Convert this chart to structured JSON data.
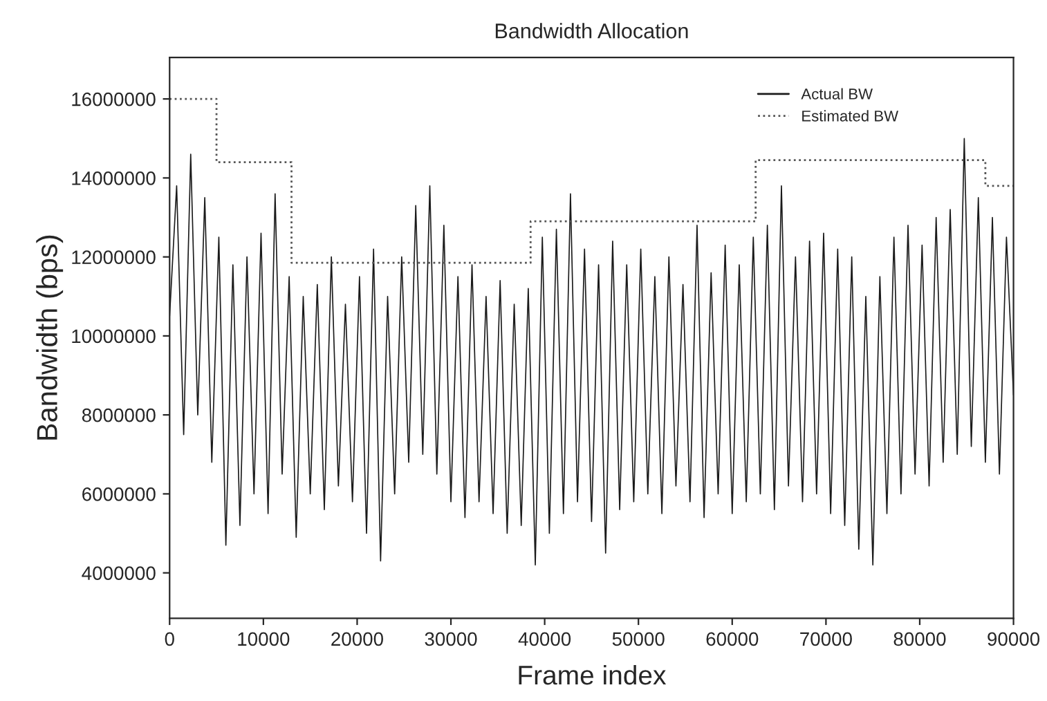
{
  "chart_data": {
    "type": "line",
    "title": "Bandwidth Allocation",
    "xlabel": "Frame index",
    "ylabel": "Bandwidth (bps)",
    "xlim": [
      0,
      90000
    ],
    "xticks": [
      0,
      10000,
      20000,
      30000,
      40000,
      50000,
      60000,
      70000,
      80000,
      90000
    ],
    "ylim": [
      2850000,
      17050000
    ],
    "yticks": [
      4000000,
      6000000,
      8000000,
      10000000,
      12000000,
      14000000,
      16000000
    ],
    "grid": false,
    "legend": "top right",
    "marker": "none",
    "series": [
      {
        "name": "Actual BW",
        "line_style": "solid",
        "color": "#1a1a1a",
        "x": [
          0,
          750,
          1500,
          2250,
          3000,
          3750,
          4500,
          5250,
          6000,
          6750,
          7500,
          8250,
          9000,
          9750,
          10500,
          11250,
          12000,
          12750,
          13500,
          14250,
          15000,
          15750,
          16500,
          17250,
          18000,
          18750,
          19500,
          20250,
          21000,
          21750,
          22500,
          23250,
          24000,
          24750,
          25500,
          26250,
          27000,
          27750,
          28500,
          29250,
          30000,
          30750,
          31500,
          32250,
          33000,
          33750,
          34500,
          35250,
          36000,
          36750,
          37500,
          38250,
          39000,
          39750,
          40500,
          41250,
          42000,
          42750,
          43500,
          44250,
          45000,
          45750,
          46500,
          47250,
          48000,
          48750,
          49500,
          50250,
          51000,
          51750,
          52500,
          53250,
          54000,
          54750,
          55500,
          56250,
          57000,
          57750,
          58500,
          59250,
          60000,
          60750,
          61500,
          62250,
          63000,
          63750,
          64500,
          65250,
          66000,
          66750,
          67500,
          68250,
          69000,
          69750,
          70500,
          71250,
          72000,
          72750,
          73500,
          74250,
          75000,
          75750,
          76500,
          77250,
          78000,
          78750,
          79500,
          80250,
          81000,
          81750,
          82500,
          83250,
          84000,
          84750,
          85500,
          86250,
          87000,
          87750,
          88500,
          89250,
          90000
        ],
        "values": [
          10500000,
          13800000,
          7500000,
          14600000,
          8000000,
          13500000,
          6800000,
          12500000,
          4700000,
          11800000,
          5200000,
          12000000,
          6000000,
          12600000,
          5500000,
          13600000,
          6500000,
          11500000,
          4900000,
          11000000,
          6000000,
          11300000,
          5600000,
          12000000,
          6200000,
          10800000,
          5800000,
          11500000,
          5000000,
          12200000,
          4300000,
          11000000,
          6000000,
          12000000,
          6800000,
          13300000,
          7000000,
          13800000,
          6500000,
          12800000,
          5800000,
          11500000,
          5400000,
          11800000,
          5800000,
          11000000,
          5500000,
          11400000,
          5000000,
          10800000,
          5200000,
          11200000,
          4200000,
          12500000,
          5000000,
          12700000,
          5500000,
          13600000,
          5800000,
          12200000,
          5300000,
          11800000,
          4500000,
          12400000,
          5600000,
          11800000,
          5800000,
          12200000,
          6000000,
          11500000,
          5500000,
          12000000,
          6200000,
          11300000,
          5800000,
          12800000,
          5400000,
          11600000,
          6000000,
          12300000,
          5500000,
          11800000,
          5800000,
          12500000,
          6000000,
          12800000,
          5600000,
          13800000,
          6200000,
          12000000,
          5800000,
          12400000,
          6000000,
          12600000,
          5500000,
          12200000,
          5200000,
          12000000,
          4600000,
          11000000,
          4200000,
          11500000,
          5500000,
          12500000,
          6000000,
          12800000,
          6500000,
          12300000,
          6200000,
          13000000,
          6800000,
          13200000,
          7000000,
          15000000,
          7200000,
          13500000,
          6800000,
          13000000,
          6500000,
          12500000,
          8500000
        ]
      },
      {
        "name": "Estimated BW",
        "type": "step",
        "line_style": "dotted",
        "color": "#555555",
        "x": [
          0,
          5000,
          13000,
          38500,
          62500,
          87000,
          90000
        ],
        "values": [
          16000000,
          14400000,
          11850000,
          12900000,
          14450000,
          13800000,
          13800000
        ]
      }
    ]
  }
}
